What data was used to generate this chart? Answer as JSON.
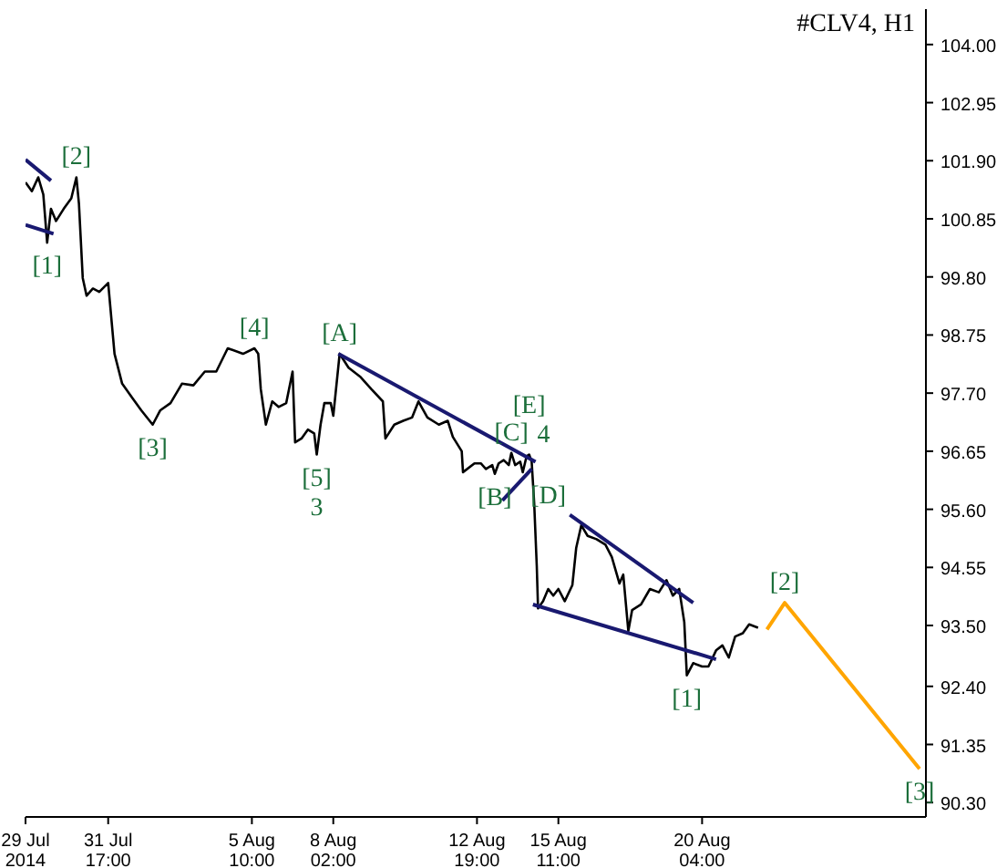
{
  "chart_data": {
    "type": "line",
    "title": "#CLV4, H1",
    "xlim": [
      "2014-07-29T00:00",
      "2014-08-27T12:00"
    ],
    "ylim": [
      90.04,
      104.64
    ],
    "xticks": [
      {
        "value": "2014-07-29T00:00",
        "label": "29 Jul 2014"
      },
      {
        "value": "2014-07-31T17:00",
        "label": "31 Jul 17:00"
      },
      {
        "value": "2014-08-05T10:00",
        "label": "5 Aug 10:00"
      },
      {
        "value": "2014-08-08T02:00",
        "label": "8 Aug 02:00"
      },
      {
        "value": "2014-08-12T19:00",
        "label": "12 Aug 19:00"
      },
      {
        "value": "2014-08-15T11:00",
        "label": "15 Aug 11:00"
      },
      {
        "value": "2014-08-20T04:00",
        "label": "20 Aug 04:00"
      }
    ],
    "yticks": [
      {
        "value": 90.3,
        "label": "90.30"
      },
      {
        "value": 91.35,
        "label": "91.35"
      },
      {
        "value": 92.4,
        "label": "92.40"
      },
      {
        "value": 93.5,
        "label": "93.50"
      },
      {
        "value": 94.55,
        "label": "94.55"
      },
      {
        "value": 95.6,
        "label": "95.60"
      },
      {
        "value": 96.65,
        "label": "96.65"
      },
      {
        "value": 97.7,
        "label": "97.70"
      },
      {
        "value": 98.75,
        "label": "98.75"
      },
      {
        "value": 99.8,
        "label": "99.80"
      },
      {
        "value": 100.85,
        "label": "100.85"
      },
      {
        "value": 101.9,
        "label": "101.90"
      },
      {
        "value": 102.95,
        "label": "102.95"
      },
      {
        "value": 104,
        "label": "104.00"
      }
    ],
    "grid": false,
    "marker": "none",
    "series": [
      {
        "color": "#000000",
        "x": [
          "2014-07-29T00:00",
          "2014-07-29T05:00",
          "2014-07-29T10:00",
          "2014-07-29T14:00",
          "2014-07-29T17:00",
          "2014-07-29T20:00",
          "2014-07-30T00:00",
          "2014-07-30T06:00",
          "2014-07-30T12:00",
          "2014-07-30T16:00",
          "2014-07-30T18:00",
          "2014-07-30T21:00",
          "2014-07-31T00:00",
          "2014-07-31T05:00",
          "2014-07-31T10:00",
          "2014-07-31T17:00",
          "2014-07-31T22:00",
          "2014-08-01T04:00",
          "2014-08-01T12:00",
          "2014-08-01T19:00",
          "2014-08-02T04:00",
          "2014-08-02T10:00",
          "2014-08-02T18:00",
          "2014-08-03T03:00",
          "2014-08-03T12:00",
          "2014-08-03T21:00",
          "2014-08-04T06:00",
          "2014-08-04T15:00",
          "2014-08-05T03:00",
          "2014-08-05T12:00",
          "2014-08-05T15:00",
          "2014-08-05T17:00",
          "2014-08-05T21:00",
          "2014-08-06T02:00",
          "2014-08-06T07:00",
          "2014-08-06T13:00",
          "2014-08-06T18:00",
          "2014-08-06T20:00",
          "2014-08-07T01:00",
          "2014-08-07T06:00",
          "2014-08-07T11:00",
          "2014-08-07T13:00",
          "2014-08-07T16:00",
          "2014-08-07T19:00",
          "2014-08-08T00:00",
          "2014-08-08T02:00",
          "2014-08-08T07:00",
          "2014-08-08T14:00",
          "2014-08-08T23:00",
          "2014-08-09T08:00",
          "2014-08-09T17:00",
          "2014-08-09T19:00",
          "2014-08-10T02:00",
          "2014-08-10T09:00",
          "2014-08-10T16:00",
          "2014-08-10T21:00",
          "2014-08-11T04:00",
          "2014-08-11T13:00",
          "2014-08-11T20:00",
          "2014-08-12T00:00",
          "2014-08-12T07:00",
          "2014-08-12T08:00",
          "2014-08-12T17:00",
          "2014-08-12T22:00",
          "2014-08-13T02:00",
          "2014-08-13T07:00",
          "2014-08-13T09:00",
          "2014-08-13T12:00",
          "2014-08-13T16:00",
          "2014-08-13T20:00",
          "2014-08-13T22:00",
          "2014-08-14T01:00",
          "2014-08-14T05:00",
          "2014-08-14T07:00",
          "2014-08-14T10:00",
          "2014-08-14T12:00",
          "2014-08-14T14:00",
          "2014-08-14T16:00",
          "2014-08-14T18:00",
          "2014-08-14T19:00",
          "2014-08-14T23:00",
          "2014-08-15T03:00",
          "2014-08-15T07:00",
          "2014-08-15T11:00",
          "2014-08-15T16:00",
          "2014-08-15T22:00",
          "2014-08-16T01:00",
          "2014-08-16T05:00",
          "2014-08-16T10:00",
          "2014-08-16T17:00",
          "2014-08-17T00:00",
          "2014-08-17T05:00",
          "2014-08-17T11:00",
          "2014-08-17T14:00",
          "2014-08-17T18:00",
          "2014-08-17T21:00",
          "2014-08-18T04:00",
          "2014-08-18T11:00",
          "2014-08-18T18:00",
          "2014-08-19T00:00",
          "2014-08-19T05:00",
          "2014-08-19T10:00",
          "2014-08-19T14:00",
          "2014-08-19T16:00",
          "2014-08-19T21:00",
          "2014-08-20T04:00",
          "2014-08-20T09:00",
          "2014-08-20T15:00",
          "2014-08-20T20:00",
          "2014-08-21T01:00",
          "2014-08-21T06:00",
          "2014-08-21T12:00",
          "2014-08-21T17:00",
          "2014-08-22T00:00"
        ],
        "values": [
          101.51,
          101.35,
          101.6,
          101.29,
          100.42,
          101.03,
          100.81,
          101.03,
          101.22,
          101.6,
          101.13,
          99.78,
          99.46,
          99.59,
          99.53,
          99.69,
          98.41,
          97.87,
          97.61,
          97.39,
          97.13,
          97.39,
          97.52,
          97.87,
          97.84,
          98.09,
          98.09,
          98.51,
          98.41,
          98.51,
          98.41,
          97.77,
          97.13,
          97.55,
          97.45,
          97.52,
          98.09,
          96.81,
          96.88,
          97.04,
          96.97,
          96.59,
          97.13,
          97.52,
          97.52,
          97.29,
          98.41,
          98.16,
          98.0,
          97.77,
          97.55,
          96.88,
          97.13,
          97.2,
          97.26,
          97.55,
          97.26,
          97.13,
          97.2,
          96.91,
          96.65,
          96.27,
          96.43,
          96.43,
          96.33,
          96.4,
          96.24,
          96.43,
          96.49,
          96.4,
          96.62,
          96.4,
          96.46,
          96.27,
          96.56,
          96.59,
          96.46,
          95.7,
          94.58,
          93.81,
          93.94,
          94.16,
          94.04,
          94.16,
          93.94,
          94.23,
          94.9,
          95.31,
          95.12,
          95.06,
          94.96,
          94.74,
          94.26,
          94.42,
          93.4,
          93.78,
          93.88,
          94.16,
          94.1,
          94.32,
          94.04,
          94.16,
          93.56,
          92.6,
          92.82,
          92.76,
          92.76,
          93.05,
          93.14,
          92.92,
          93.3,
          93.36,
          93.52,
          93.46
        ]
      },
      {
        "color": "#191970",
        "x": [
          "2014-07-29T00:00",
          "2014-07-29T20:00"
        ],
        "values": [
          101.92,
          101.54
        ]
      },
      {
        "color": "#191970",
        "x": [
          "2014-07-29T00:00",
          "2014-07-29T22:00"
        ],
        "values": [
          100.74,
          100.58
        ]
      },
      {
        "color": "#191970",
        "x": [
          "2014-08-08T06:00",
          "2014-08-14T17:00"
        ],
        "values": [
          98.41,
          96.46
        ]
      },
      {
        "color": "#191970",
        "x": [
          "2014-08-13T15:00",
          "2014-08-14T14:00"
        ],
        "values": [
          95.76,
          96.33
        ]
      },
      {
        "color": "#191970",
        "x": [
          "2014-08-14T15:00",
          "2014-08-20T15:00"
        ],
        "values": [
          93.88,
          92.89
        ]
      },
      {
        "color": "#191970",
        "x": [
          "2014-08-15T20:00",
          "2014-08-19T21:00"
        ],
        "values": [
          95.5,
          93.91
        ]
      },
      {
        "color": "#ffa500",
        "x": [
          "2014-08-22T07:00",
          "2014-08-22T21:00",
          "2014-08-27T07:00"
        ],
        "values": [
          93.43,
          93.91,
          90.91
        ]
      }
    ],
    "annotations": [
      {
        "text": "[1]",
        "x": "2014-07-29T17:00",
        "y": 100.42
      },
      {
        "text": "[2]",
        "x": "2014-07-30T16:00",
        "y": 101.6
      },
      {
        "text": "[3]",
        "x": "2014-08-02T04:00",
        "y": 97.13
      },
      {
        "text": "[4]",
        "x": "2014-08-05T12:00",
        "y": 98.51
      },
      {
        "text": "[5]",
        "x": "2014-08-07T13:00",
        "y": 96.59
      },
      {
        "text": "3",
        "x": "2014-08-07T13:00",
        "y": 96.59
      },
      {
        "text": "[A]",
        "x": "2014-08-08T07:00",
        "y": 98.41
      },
      {
        "text": "[B]",
        "x": "2014-08-13T09:00",
        "y": 96.24
      },
      {
        "text": "[C]",
        "x": "2014-08-13T22:00",
        "y": 96.62
      },
      {
        "text": "[D]",
        "x": "2014-08-14T07:00",
        "y": 96.27
      },
      {
        "text": "[E]",
        "x": "2014-08-14T12:00",
        "y": 96.59
      },
      {
        "text": "4",
        "x": "2014-08-14T12:00",
        "y": 96.59
      },
      {
        "text": "[1]",
        "x": "2014-08-19T16:00",
        "y": 92.6
      },
      {
        "text": "[2]",
        "x": "2014-08-22T21:00",
        "y": 93.91
      },
      {
        "text": "[3]",
        "x": "2014-08-27T07:00",
        "y": 90.91
      }
    ]
  }
}
